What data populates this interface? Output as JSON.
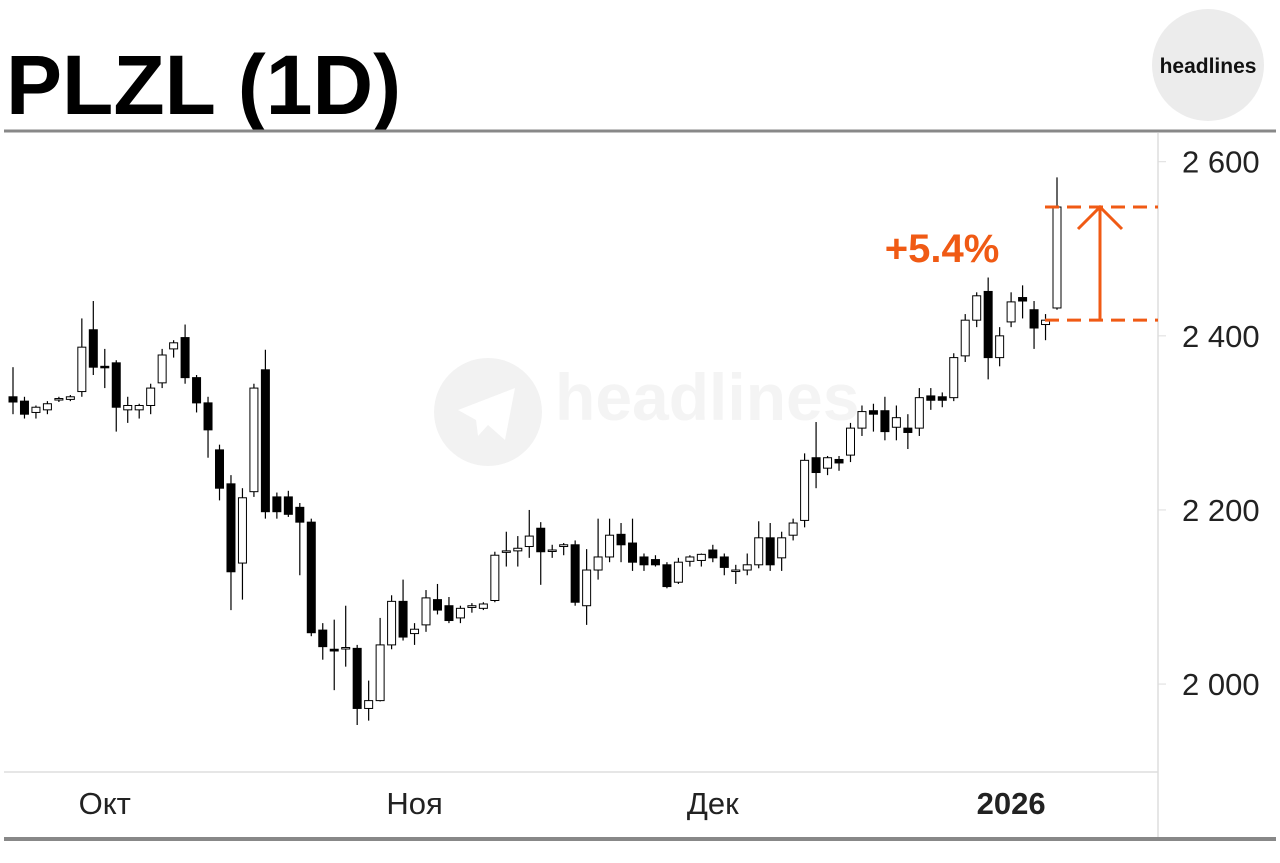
{
  "logo": "headlines",
  "watermark": "headlines",
  "chart_data": {
    "type": "candlestick",
    "title": "PLZL (1D)",
    "annotation": "+5.4%",
    "up_color": "#ffffff",
    "down_color": "#000000",
    "annotation_color": "#f05a14",
    "categories": [
      null,
      null,
      null,
      null,
      null,
      null,
      null,
      null,
      "Окт",
      null,
      null,
      null,
      null,
      null,
      null,
      null,
      null,
      null,
      null,
      null,
      null,
      null,
      null,
      null,
      null,
      null,
      null,
      null,
      null,
      null,
      null,
      null,
      null,
      null,
      null,
      "Ноя",
      null,
      null,
      null,
      null,
      null,
      null,
      null,
      null,
      null,
      null,
      null,
      null,
      null,
      null,
      null,
      null,
      null,
      null,
      null,
      null,
      null,
      null,
      null,
      null,
      null,
      "Дек",
      null,
      null,
      null,
      null,
      null,
      null,
      null,
      null,
      null,
      null,
      null,
      null,
      null,
      null,
      null,
      null,
      null,
      null,
      null,
      null,
      null,
      null,
      null,
      null,
      null,
      "2026",
      null,
      null,
      null,
      null
    ],
    "open": [
      2330,
      2325,
      2312,
      2315,
      2327,
      2327,
      2336,
      2407,
      2365,
      2369,
      2315,
      2315,
      2320,
      2346,
      2385,
      2398,
      2352,
      2323,
      2269,
      2230,
      2139,
      2221,
      2361,
      2215,
      2215,
      2203,
      2186,
      2062,
      2040,
      2041,
      2041,
      1972,
      1981,
      2045,
      2095,
      2058,
      2068,
      2097,
      2090,
      2076,
      2088,
      2087,
      2096,
      2152,
      2153,
      2158,
      2179,
      2154,
      2158,
      2160,
      2090,
      2131,
      2146,
      2172,
      2162,
      2146,
      2143,
      2137,
      2117,
      2141,
      2142,
      2154,
      2146,
      2131,
      2131,
      2137,
      2168,
      2145,
      2171,
      2188,
      2260,
      2248,
      2258,
      2263,
      2294,
      2314,
      2314,
      2295,
      2294,
      2294,
      2331,
      2330,
      2329,
      2377,
      2418,
      2451,
      2375,
      2416,
      2444,
      2430,
      2413,
      2432
    ],
    "high": [
      2364,
      2330,
      2320,
      2325,
      2330,
      2332,
      2420,
      2440,
      2385,
      2372,
      2330,
      2322,
      2345,
      2385,
      2395,
      2413,
      2355,
      2330,
      2275,
      2240,
      2225,
      2345,
      2384,
      2220,
      2222,
      2208,
      2190,
      2070,
      2074,
      2090,
      2045,
      2004,
      2076,
      2102,
      2120,
      2070,
      2108,
      2115,
      2100,
      2090,
      2093,
      2094,
      2152,
      2175,
      2170,
      2200,
      2186,
      2160,
      2162,
      2165,
      2155,
      2190,
      2190,
      2185,
      2190,
      2150,
      2148,
      2140,
      2145,
      2148,
      2150,
      2160,
      2150,
      2137,
      2150,
      2187,
      2185,
      2175,
      2190,
      2265,
      2301,
      2262,
      2262,
      2300,
      2320,
      2322,
      2330,
      2320,
      2310,
      2340,
      2340,
      2335,
      2380,
      2425,
      2450,
      2467,
      2410,
      2450,
      2458,
      2440,
      2425,
      2582
    ],
    "low": [
      2310,
      2305,
      2305,
      2310,
      2324,
      2325,
      2330,
      2355,
      2340,
      2290,
      2300,
      2305,
      2310,
      2340,
      2375,
      2345,
      2312,
      2260,
      2211,
      2085,
      2097,
      2215,
      2190,
      2190,
      2192,
      2125,
      2055,
      2028,
      1993,
      2020,
      1953,
      1958,
      1980,
      2040,
      2050,
      2045,
      2060,
      2080,
      2070,
      2070,
      2082,
      2085,
      2094,
      2135,
      2135,
      2145,
      2114,
      2145,
      2148,
      2090,
      2068,
      2120,
      2140,
      2140,
      2130,
      2130,
      2135,
      2110,
      2115,
      2135,
      2135,
      2140,
      2125,
      2115,
      2125,
      2133,
      2130,
      2130,
      2165,
      2180,
      2225,
      2240,
      2245,
      2255,
      2285,
      2290,
      2280,
      2280,
      2270,
      2285,
      2315,
      2318,
      2325,
      2370,
      2410,
      2350,
      2365,
      2410,
      2420,
      2385,
      2395,
      2430
    ],
    "close": [
      2324,
      2310,
      2318,
      2322,
      2328,
      2330,
      2387,
      2364,
      2364,
      2318,
      2320,
      2320,
      2340,
      2378,
      2392,
      2352,
      2323,
      2292,
      2225,
      2129,
      2214,
      2340,
      2198,
      2198,
      2195,
      2186,
      2059,
      2043,
      2038,
      2042,
      1972,
      1981,
      2045,
      2095,
      2054,
      2063,
      2099,
      2085,
      2073,
      2087,
      2090,
      2092,
      2148,
      2153,
      2156,
      2170,
      2152,
      2154,
      2160,
      2094,
      2131,
      2146,
      2171,
      2160,
      2140,
      2137,
      2137,
      2112,
      2140,
      2146,
      2149,
      2145,
      2134,
      2131,
      2137,
      2168,
      2137,
      2168,
      2185,
      2257,
      2243,
      2260,
      2254,
      2294,
      2313,
      2310,
      2290,
      2306,
      2289,
      2329,
      2326,
      2326,
      2375,
      2418,
      2446,
      2375,
      2400,
      2439,
      2440,
      2409,
      2418,
      2548
    ],
    "ylim": [
      1899,
      2633
    ],
    "yticks": [
      {
        "value": 2000,
        "label": "2 000"
      },
      {
        "value": 2200,
        "label": "2 200"
      },
      {
        "value": 2400,
        "label": "2 400"
      },
      {
        "value": 2600,
        "label": "2 600"
      }
    ]
  }
}
